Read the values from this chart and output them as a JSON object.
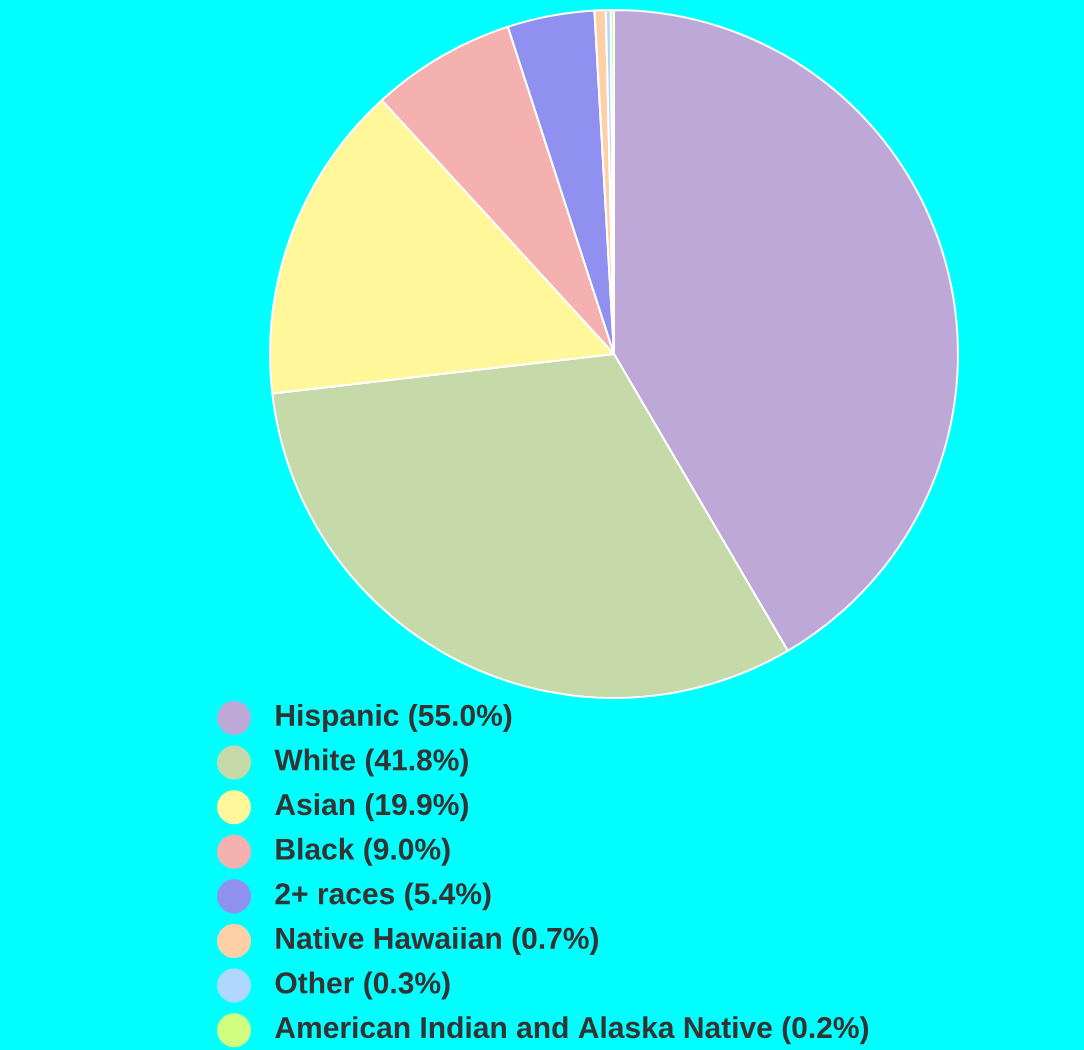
{
  "chart_data": {
    "type": "pie",
    "categories": [
      "Hispanic (55.0%)",
      "White (41.8%)",
      "Asian (19.9%)",
      "Black (9.0%)",
      "2+ races (5.4%)",
      "Native Hawaiian (0.7%)",
      "Other (0.3%)",
      "American Indian and Alaska Native (0.2%)"
    ],
    "values": [
      55.0,
      41.8,
      19.9,
      9.0,
      5.4,
      0.7,
      0.3,
      0.2
    ],
    "colors": [
      "#bea8d8",
      "#c5d9a9",
      "#fff799",
      "#f5b0b0",
      "#9090f0",
      "#ffd0a8",
      "#b0d8ff",
      "#d0ff80"
    ],
    "legend": "bottom"
  }
}
